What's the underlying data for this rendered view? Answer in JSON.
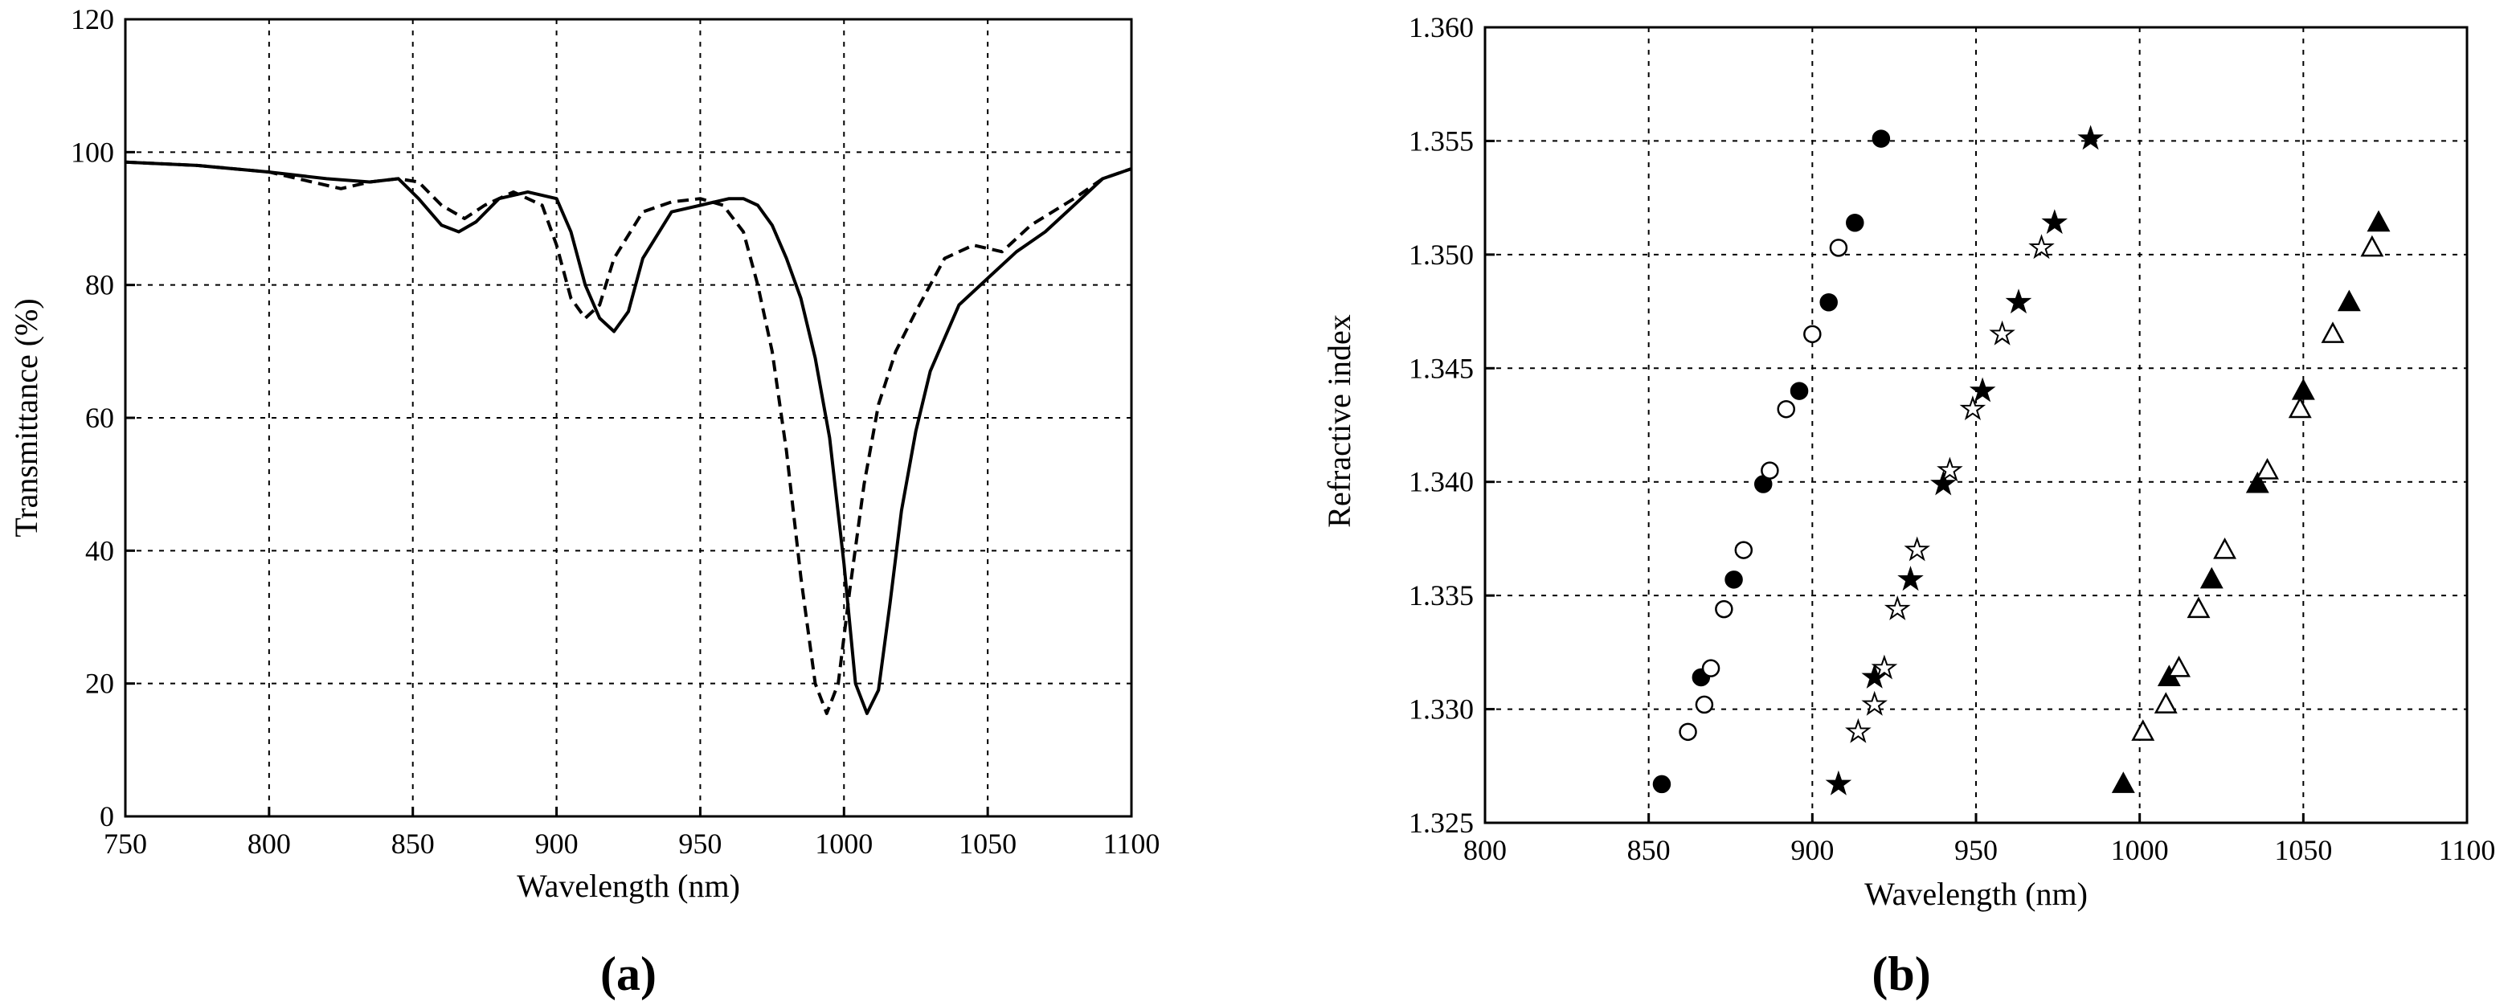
{
  "chart_data": [
    {
      "type": "line",
      "panel_label": "a",
      "xlabel": "Wavelength (nm)",
      "ylabel": "Transmittance (%)",
      "xlim": [
        750,
        1100
      ],
      "ylim": [
        0,
        120
      ],
      "xticks": [
        750,
        800,
        850,
        900,
        950,
        1000,
        1050,
        1100
      ],
      "yticks": [
        0,
        20,
        40,
        60,
        80,
        100,
        120
      ],
      "grid": true,
      "series": [
        {
          "style": "solid",
          "x": [
            750,
            775,
            800,
            820,
            835,
            845,
            852,
            860,
            866,
            872,
            880,
            890,
            900,
            905,
            910,
            915,
            920,
            925,
            930,
            940,
            950,
            960,
            965,
            970,
            975,
            980,
            985,
            990,
            995,
            1000,
            1004,
            1008,
            1012,
            1016,
            1020,
            1025,
            1030,
            1040,
            1050,
            1060,
            1070,
            1080,
            1090,
            1100
          ],
          "y": [
            98.5,
            98,
            97,
            96,
            95.5,
            96,
            93,
            89,
            88,
            89.5,
            93,
            94,
            93,
            88,
            80,
            75,
            73,
            76,
            84,
            91,
            92,
            93,
            93,
            92,
            89,
            84,
            78,
            69,
            57,
            38,
            20,
            15.5,
            19,
            32,
            46,
            58,
            67,
            77,
            81,
            85,
            88,
            92,
            96,
            97.5
          ]
        },
        {
          "style": "dashed",
          "x": [
            750,
            775,
            800,
            815,
            825,
            835,
            845,
            852,
            860,
            868,
            875,
            885,
            895,
            900,
            905,
            910,
            915,
            920,
            930,
            940,
            950,
            958,
            965,
            970,
            975,
            980,
            985,
            990,
            994,
            998,
            1002,
            1007,
            1012,
            1018,
            1025,
            1035,
            1045,
            1055,
            1065,
            1080,
            1090,
            1100
          ],
          "y": [
            98.5,
            98,
            97,
            95.5,
            94.5,
            95.5,
            96,
            95.5,
            92,
            90,
            92,
            94,
            92,
            86,
            78,
            75,
            77,
            84,
            91,
            92.5,
            93,
            92,
            88,
            80,
            70,
            55,
            36,
            20,
            15.5,
            20,
            34,
            50,
            62,
            70,
            76,
            84,
            86,
            85,
            89,
            93,
            96,
            97.5
          ]
        }
      ]
    },
    {
      "type": "scatter",
      "panel_label": "b",
      "xlabel": "Wavelength (nm)",
      "ylabel": "Refractive index",
      "xlim": [
        800,
        1100
      ],
      "ylim": [
        1.325,
        1.36
      ],
      "xticks": [
        800,
        850,
        900,
        950,
        1000,
        1050,
        1100
      ],
      "yticks": [
        "1.325",
        "1.330",
        "1.335",
        "1.340",
        "1.345",
        "1.350",
        "1.355",
        "1.360"
      ],
      "grid": true,
      "series": [
        {
          "marker": "circle-filled",
          "x": [
            854,
            866,
            876,
            885,
            896,
            905,
            913,
            921
          ],
          "y": [
            1.3267,
            1.3314,
            1.3357,
            1.3399,
            1.344,
            1.3479,
            1.3514,
            1.3551
          ]
        },
        {
          "marker": "circle-open",
          "x": [
            862,
            867,
            869,
            873,
            879,
            887,
            892,
            900,
            908
          ],
          "y": [
            1.329,
            1.3302,
            1.3318,
            1.3344,
            1.337,
            1.3405,
            1.3432,
            1.3465,
            1.3503
          ]
        },
        {
          "marker": "star-filled",
          "x": [
            908,
            919,
            930,
            940,
            952,
            963,
            974,
            985
          ],
          "y": [
            1.3267,
            1.3314,
            1.3357,
            1.3399,
            1.344,
            1.3479,
            1.3514,
            1.3551
          ]
        },
        {
          "marker": "star-open",
          "x": [
            914,
            919,
            922,
            926,
            932,
            942,
            949,
            958,
            970
          ],
          "y": [
            1.329,
            1.3302,
            1.3318,
            1.3344,
            1.337,
            1.3405,
            1.3432,
            1.3465,
            1.3503
          ]
        },
        {
          "marker": "triangle-filled",
          "x": [
            995,
            1009,
            1022,
            1036,
            1050,
            1064,
            1073
          ],
          "y": [
            1.3267,
            1.3314,
            1.3357,
            1.3399,
            1.344,
            1.3479,
            1.3514
          ]
        },
        {
          "marker": "triangle-open",
          "x": [
            1001,
            1008,
            1012,
            1018,
            1026,
            1039,
            1049,
            1059,
            1071
          ],
          "y": [
            1.329,
            1.3302,
            1.3318,
            1.3344,
            1.337,
            1.3405,
            1.3432,
            1.3465,
            1.3503
          ]
        }
      ]
    }
  ]
}
